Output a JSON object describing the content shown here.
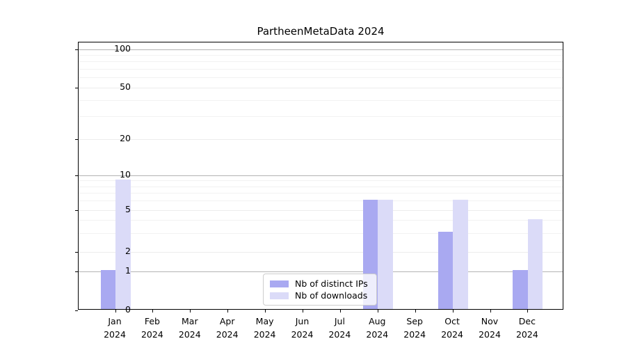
{
  "chart_data": {
    "type": "bar",
    "title": "PartheenMetaData 2024",
    "x_axis": {
      "months": [
        "Jan",
        "Feb",
        "Mar",
        "Apr",
        "May",
        "Jun",
        "Jul",
        "Aug",
        "Sep",
        "Oct",
        "Nov",
        "Dec"
      ],
      "year": "2024"
    },
    "y_axis": {
      "scale": "symlog-like",
      "ticks": [
        0,
        1,
        2,
        5,
        10,
        20,
        50,
        100
      ],
      "minor_ticks": [
        3,
        4,
        6,
        7,
        8,
        9,
        30,
        40,
        60,
        70,
        80,
        90
      ],
      "range": [
        0,
        100
      ],
      "grid": true
    },
    "series": [
      {
        "name": "Nb of distinct IPs",
        "color": "#a9a9f1",
        "values": [
          1,
          0,
          0,
          0,
          0,
          0,
          0,
          6,
          0,
          3,
          0,
          1
        ]
      },
      {
        "name": "Nb of downloads",
        "color": "#dbdbf8",
        "values": [
          9,
          0,
          0,
          0,
          0,
          0,
          0,
          6,
          0,
          6,
          0,
          4
        ]
      }
    ],
    "legend": {
      "position": "bottom-center",
      "entries": [
        "Nb of distinct IPs",
        "Nb of downloads"
      ]
    },
    "colors": {
      "decade_gridline": "#b3b3b3",
      "major_gridline": "#ececec",
      "minor_gridline": "#f2f2f2",
      "spine": "#000000",
      "text": "#000000",
      "background": "#ffffff"
    }
  }
}
